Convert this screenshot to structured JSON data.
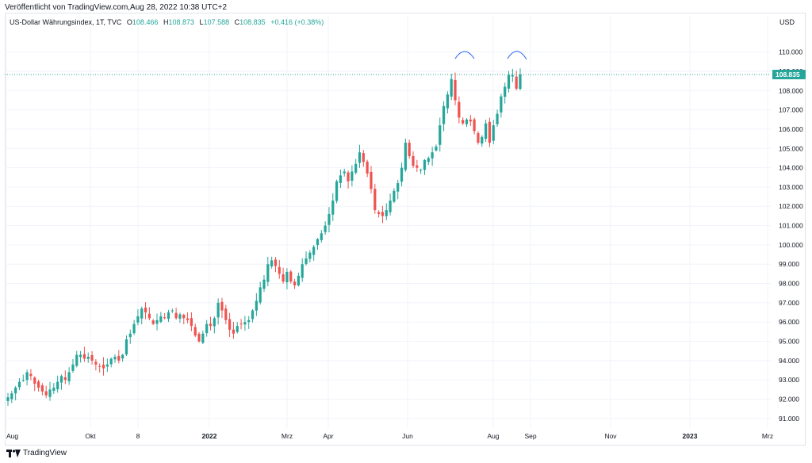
{
  "header": {
    "published": "Veröffentlicht von TradingView.com,Aug 28, 2022 10:38 UTC+2"
  },
  "legend": {
    "symbol": "US-Dollar Währungsindex, 1T, TVC",
    "open_label": "O",
    "open": "108.466",
    "high_label": "H",
    "high": "108.873",
    "low_label": "L",
    "low": "107.588",
    "close_label": "C",
    "close": "108.835",
    "change": "+0.416 (+0.38%)"
  },
  "axis": {
    "currency": "USD"
  },
  "last_price_label": "108.835",
  "footer": {
    "brand": "TradingView"
  },
  "colors": {
    "up": "#26a69a",
    "down": "#ef5350",
    "grid": "#f0f3fa",
    "price_line": "#26a69a",
    "annotation": "#2962ff"
  },
  "chart_data": {
    "type": "candlestick",
    "title": "US-Dollar Währungsindex, 1T, TVC",
    "ylim": [
      90.5,
      111.3
    ],
    "y_ticks": [
      "91.000",
      "92.000",
      "93.000",
      "94.000",
      "95.000",
      "96.000",
      "97.000",
      "98.000",
      "99.000",
      "100.000",
      "101.000",
      "102.000",
      "103.000",
      "104.000",
      "105.000",
      "106.000",
      "107.000",
      "108.000",
      "109.000",
      "110.000"
    ],
    "x_ticks": [
      "Aug",
      "Okt",
      "8",
      "2022",
      "Mrz",
      "Apr",
      "Jun",
      "Aug",
      "Sep",
      "Nov",
      "2023",
      "Mrz"
    ],
    "last_price": 108.835,
    "annotations": [
      {
        "type": "arc",
        "label": "",
        "near": "Jul 14 2022 high"
      },
      {
        "type": "arc",
        "label": "",
        "near": "Aug 2022 high"
      }
    ],
    "series": [
      {
        "values": [
          92.1,
          92.3,
          92.6,
          92.9,
          93.0,
          93.4,
          93.2,
          92.8,
          92.6,
          92.4,
          92.2,
          92.5,
          92.6,
          92.9,
          93.2,
          93.0,
          93.4,
          93.8,
          94.3,
          94.3,
          94.1,
          94.2,
          94.0,
          93.8,
          93.7,
          93.6,
          93.8,
          94.1,
          94.2,
          94.0,
          94.3,
          95.1,
          95.4,
          95.9,
          96.3,
          96.7,
          96.5,
          96.2,
          95.9,
          96.1,
          96.3,
          96.2,
          96.5,
          96.6,
          96.2,
          96.4,
          96.2,
          96.1,
          95.8,
          95.3,
          95.0,
          95.4,
          95.9,
          95.8,
          96.2,
          97.0,
          96.6,
          96.1,
          95.6,
          95.4,
          95.8,
          95.9,
          96.0,
          96.1,
          96.6,
          97.1,
          97.8,
          98.2,
          99.0,
          99.2,
          98.9,
          98.5,
          98.1,
          98.6,
          98.1,
          97.9,
          98.4,
          99.0,
          99.3,
          99.6,
          99.9,
          100.3,
          100.6,
          101.0,
          101.6,
          102.3,
          103.3,
          103.6,
          103.8,
          103.3,
          103.8,
          104.2,
          104.8,
          104.3,
          103.7,
          102.9,
          101.8,
          101.6,
          101.5,
          101.8,
          102.3,
          102.8,
          103.2,
          104.0,
          105.3,
          104.6,
          104.1,
          104.0,
          103.9,
          104.4,
          104.5,
          104.8,
          105.1,
          106.2,
          107.2,
          107.8,
          108.6,
          107.5,
          106.6,
          106.3,
          106.5,
          106.4,
          105.9,
          105.3,
          105.6,
          106.3,
          105.3,
          106.2,
          106.8,
          107.7,
          108.2,
          108.8,
          108.8,
          108.1,
          108.835
        ]
      }
    ]
  }
}
